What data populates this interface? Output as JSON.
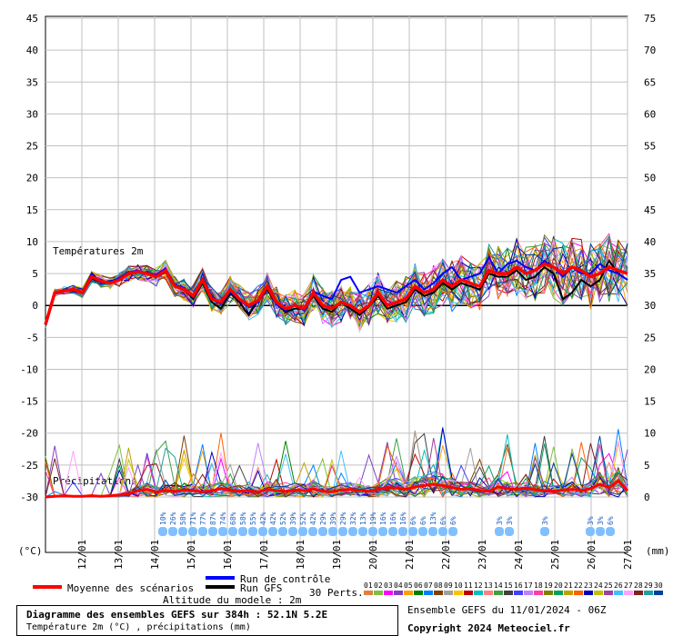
{
  "chart_data": {
    "type": "line",
    "title": "Diagramme des ensembles GEFS sur 384h : 52.1N 5.2E",
    "subtitle": "Température 2m (°C) , précipitations (mm)",
    "left_axis": {
      "unit": "(°C)",
      "ticks": [
        45,
        40,
        35,
        30,
        25,
        20,
        15,
        10,
        5,
        0,
        -5,
        -10,
        -15,
        -20,
        -25,
        -30
      ],
      "range": [
        -30,
        45
      ]
    },
    "right_axis": {
      "unit": "(mm)",
      "ticks": [
        75,
        70,
        65,
        60,
        55,
        50,
        45,
        40,
        35,
        30,
        25,
        20,
        15,
        10,
        5,
        0
      ],
      "range": [
        0,
        75
      ]
    },
    "x_axis": {
      "ticks": [
        "12/01",
        "13/01",
        "14/01",
        "15/01",
        "16/01",
        "17/01",
        "18/01",
        "19/01",
        "20/01",
        "21/01",
        "22/01",
        "23/01",
        "24/01",
        "25/01",
        "26/01",
        "27/01"
      ]
    },
    "section_labels": {
      "temperature": "Températures 2m",
      "precipitation": "Précipitations"
    },
    "grid": true,
    "mean_temperature": [
      -3,
      2,
      2.3,
      2.5,
      2,
      4.5,
      3.8,
      3.5,
      4,
      5,
      5.3,
      5,
      4.5,
      5.5,
      3,
      2.5,
      1.5,
      4,
      1,
      0.5,
      2.5,
      1,
      0,
      0.8,
      3,
      0.5,
      -0.5,
      0,
      -0.5,
      2,
      0,
      -0.5,
      0.5,
      0,
      -1,
      0,
      2,
      0,
      0.5,
      1,
      3,
      2,
      2.5,
      4,
      3,
      4,
      3.5,
      3,
      5.5,
      5,
      5,
      6,
      5,
      5.5,
      6.5,
      6,
      5,
      6,
      5.5,
      4.5,
      5,
      6,
      5.5,
      5
    ],
    "mean_precip": [
      0,
      0.1,
      0.2,
      0.1,
      0.1,
      0.2,
      0.1,
      0.2,
      0.3,
      0.5,
      1,
      1.2,
      0.8,
      1,
      0.9,
      1.1,
      1,
      0.8,
      1,
      1.3,
      1.1,
      0.9,
      1,
      0.8,
      1.2,
      1,
      0.9,
      1.1,
      1,
      1.3,
      0.9,
      0.8,
      1.1,
      1.2,
      1,
      0.9,
      1.2,
      1.5,
      1.4,
      1.2,
      1.6,
      1.8,
      2,
      1.8,
      1.5,
      1.2,
      1.3,
      1,
      0.9,
      1.6,
      1.3,
      1.2,
      1.4,
      1.1,
      1,
      0.9,
      1.1,
      1.2,
      1,
      1.3,
      2,
      1.5,
      2.5,
      1
    ],
    "control_temperature": [
      -3,
      2,
      2.4,
      2.2,
      2,
      5,
      3.5,
      3.8,
      4.2,
      5.2,
      5.5,
      5,
      4.8,
      5.8,
      3.2,
      2.8,
      1.2,
      3.8,
      1.5,
      0.2,
      2.2,
      0.8,
      -0.2,
      0.5,
      2.8,
      0.2,
      -0.8,
      0.2,
      -0.8,
      2.2,
      1.5,
      1,
      4,
      4.5,
      2,
      2.5,
      3,
      2.5,
      2,
      3,
      4,
      2.5,
      3.5,
      5,
      6,
      4,
      4.5,
      5,
      7.5,
      5,
      6.5,
      7,
      6,
      5.5,
      7,
      6,
      4.5,
      6,
      5,
      5,
      6.5,
      5.5,
      5,
      4
    ],
    "gfs_temperature": [
      -3,
      2,
      2.2,
      2.5,
      2,
      4.2,
      3.6,
      3.5,
      4.2,
      5,
      5.2,
      5.2,
      4.5,
      5.2,
      3,
      2.5,
      1,
      3.5,
      0.5,
      -0.5,
      2,
      0.5,
      -1.5,
      0.8,
      2.5,
      0.2,
      -1,
      -0.5,
      -0.5,
      1.5,
      -0.5,
      -1,
      0.5,
      -0.5,
      -1.5,
      -0.2,
      1.5,
      -0.5,
      0,
      0.5,
      2.5,
      1.5,
      2,
      3.5,
      2.5,
      3.5,
      3,
      2.5,
      5,
      4.5,
      4.5,
      5.5,
      4,
      4.5,
      6,
      5,
      1,
      2,
      4,
      3,
      4,
      7,
      5,
      4
    ],
    "precip_probability_labels": [
      "10%",
      "26%",
      "58%",
      "71%",
      "77%",
      "87%",
      "74%",
      "68%",
      "58%",
      "55%",
      "42%",
      "42%",
      "52%",
      "39%",
      "52%",
      "42%",
      "29%",
      "39%",
      "29%",
      "32%",
      "13%",
      "19%",
      "16%",
      "16%",
      "16%",
      "6%",
      "6%",
      "13%",
      "6%",
      "6%",
      "3%",
      "3%",
      "3%",
      "3%",
      "3%",
      "6%"
    ],
    "legend": {
      "mean": "Moyenne des scénarios",
      "control": "Run de contrôle",
      "gfs": "Run GFS",
      "perts": "30 Perts.",
      "altitude": "Altitude du modele : 2m",
      "member_labels": [
        "01",
        "02",
        "03",
        "04",
        "05",
        "06",
        "07",
        "08",
        "09",
        "10",
        "11",
        "12",
        "13",
        "14",
        "15",
        "16",
        "17",
        "18",
        "19",
        "20",
        "21",
        "22",
        "23",
        "24",
        "25",
        "26",
        "27",
        "28",
        "29",
        "30"
      ],
      "member_colors": [
        "#e08040",
        "#80c040",
        "#ff00ff",
        "#8040c0",
        "#ffa000",
        "#008000",
        "#0080ff",
        "#804000",
        "#a0a0a0",
        "#ffc000",
        "#c00000",
        "#00c0c0",
        "#ff8080",
        "#40a040",
        "#404040",
        "#4040ff",
        "#c080ff",
        "#ff40a0",
        "#808000",
        "#00a060",
        "#c0a000",
        "#ff6000",
        "#0000c0",
        "#c0c000",
        "#a040a0",
        "#40c0ff",
        "#ffa0ff",
        "#802020",
        "#20a0a0",
        "#0040a0"
      ]
    },
    "colors": {
      "mean": "#ff0000",
      "control": "#0000ff",
      "gfs": "#000000",
      "grid": "#c0c0c0",
      "rain_marker": "#80c0ff"
    }
  },
  "info": {
    "run": "Ensemble GEFS du 11/01/2024 - 06Z",
    "copyright": "Copyright 2024 Meteociel.fr"
  }
}
